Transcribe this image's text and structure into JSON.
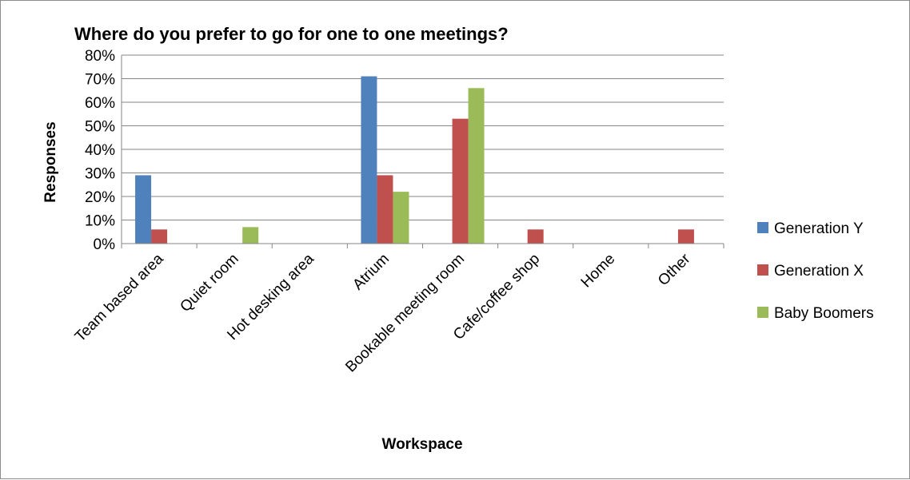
{
  "chart_data": {
    "type": "bar",
    "title": "Where do you prefer to go for one to one meetings?",
    "xlabel": "Workspace",
    "ylabel": "Responses",
    "ylim": [
      0,
      80
    ],
    "y_tick_step": 10,
    "y_unit": "%",
    "categories": [
      "Team based area",
      "Quiet room",
      "Hot desking area",
      "Atrium",
      "Bookable meeting room",
      "Cafe/coffee shop",
      "Home",
      "Other"
    ],
    "series": [
      {
        "name": "Generation Y",
        "color": "#4f81bd",
        "values": [
          29,
          0,
          0,
          71,
          0,
          0,
          0,
          0
        ]
      },
      {
        "name": "Generation X",
        "color": "#c0504d",
        "values": [
          6,
          0,
          0,
          29,
          53,
          6,
          0,
          6
        ]
      },
      {
        "name": "Baby Boomers",
        "color": "#9bbb59",
        "values": [
          0,
          7,
          0,
          22,
          66,
          0,
          0,
          0
        ]
      }
    ],
    "grid": true,
    "legend_position": "right"
  }
}
